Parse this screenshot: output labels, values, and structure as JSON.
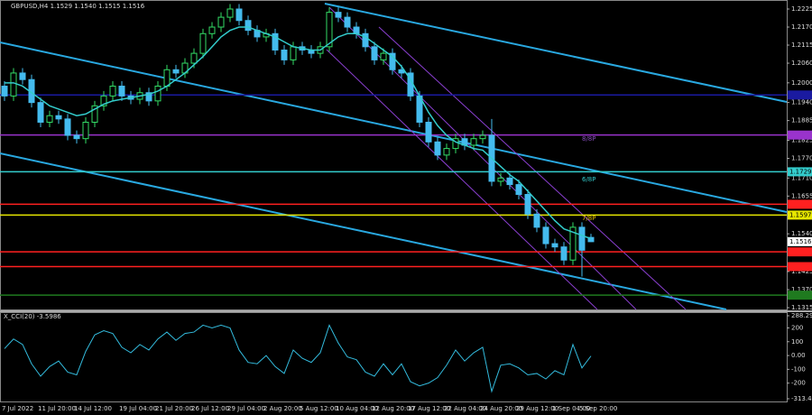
{
  "chart_data": [
    {
      "type": "candlestick",
      "title": "GBPUSD,H4  1.1529 1.1540 1.1515 1.1516",
      "categories": [
        "7 Jul 2022",
        null,
        null,
        null,
        "11 Jul 20:00",
        null,
        null,
        null,
        "14 Jul 12:00",
        null,
        null,
        null,
        null,
        "19 Jul 04:00",
        null,
        null,
        null,
        "21 Jul 20:00",
        null,
        null,
        null,
        "26 Jul 12:00",
        null,
        null,
        null,
        "29 Jul 04:00",
        null,
        null,
        null,
        "2 Aug 20:00",
        null,
        null,
        null,
        "5 Aug 12:00",
        null,
        null,
        null,
        "10 Aug 04:00",
        null,
        null,
        null,
        "12 Aug 20:00",
        null,
        null,
        null,
        "17 Aug 12:00",
        null,
        null,
        null,
        "22 Aug 04:00",
        null,
        null,
        null,
        "24 Aug 20:00",
        null,
        null,
        null,
        "29 Aug 12:00",
        null,
        null,
        null,
        "1 Sep 04:00",
        null,
        null,
        "5 Sep 20:00",
        null
      ],
      "open": [
        1.199,
        1.196,
        1.203,
        1.201,
        1.194,
        1.188,
        1.19,
        1.189,
        1.184,
        1.183,
        1.188,
        1.193,
        1.196,
        1.199,
        1.196,
        1.195,
        1.197,
        1.1945,
        1.199,
        1.204,
        1.203,
        1.206,
        1.209,
        1.215,
        1.217,
        1.22,
        1.2225,
        1.219,
        1.216,
        1.214,
        1.215,
        1.21,
        1.207,
        1.211,
        1.21,
        1.209,
        1.211,
        1.2215,
        1.22,
        1.217,
        1.215,
        1.211,
        1.207,
        1.209,
        1.204,
        1.203,
        1.196,
        1.188,
        1.182,
        1.178,
        1.18,
        1.183,
        1.181,
        1.183,
        1.184,
        1.17,
        1.171,
        1.169,
        1.166,
        1.16,
        1.156,
        1.151,
        1.15,
        1.146,
        1.156,
        1.1529
      ],
      "high": [
        1.2005,
        1.2045,
        1.2045,
        1.2025,
        1.1955,
        1.1915,
        1.1915,
        1.1905,
        1.1855,
        1.1895,
        1.1945,
        1.1975,
        1.2005,
        1.2005,
        1.1975,
        1.1985,
        1.1985,
        1.2005,
        1.2055,
        1.2055,
        1.2075,
        1.2105,
        1.2165,
        1.2185,
        1.2215,
        1.224,
        1.224,
        1.2205,
        1.2175,
        1.2165,
        1.2165,
        1.2115,
        1.2125,
        1.2125,
        1.2115,
        1.2125,
        1.223,
        1.223,
        1.2215,
        1.2185,
        1.2165,
        1.2125,
        1.2105,
        1.2105,
        1.2055,
        1.2045,
        1.1975,
        1.1895,
        1.1835,
        1.1815,
        1.1845,
        1.1845,
        1.1845,
        1.1855,
        1.189,
        1.1725,
        1.1725,
        1.1705,
        1.1675,
        1.1615,
        1.1575,
        1.1525,
        1.1515,
        1.1575,
        1.1575,
        1.154
      ],
      "low": [
        1.1945,
        1.1945,
        1.1995,
        1.1925,
        1.1865,
        1.1865,
        1.1875,
        1.1825,
        1.1815,
        1.1815,
        1.1865,
        1.1915,
        1.1945,
        1.1945,
        1.1935,
        1.1935,
        1.193,
        1.193,
        1.1975,
        1.2015,
        1.2015,
        1.2045,
        1.2075,
        1.2135,
        1.2155,
        1.2185,
        1.2175,
        1.2145,
        1.2125,
        1.2125,
        1.2085,
        1.2055,
        1.2055,
        1.2085,
        1.2075,
        1.2075,
        1.2095,
        1.2185,
        1.2155,
        1.2135,
        1.2095,
        1.2055,
        1.2055,
        1.2025,
        1.2015,
        1.1945,
        1.1865,
        1.1805,
        1.1765,
        1.1765,
        1.1785,
        1.1795,
        1.1795,
        1.1815,
        1.1685,
        1.1685,
        1.1675,
        1.1645,
        1.1585,
        1.1545,
        1.1495,
        1.1485,
        1.1445,
        1.1445,
        1.141,
        1.1515
      ],
      "close": [
        1.196,
        1.203,
        1.201,
        1.194,
        1.188,
        1.19,
        1.189,
        1.184,
        1.183,
        1.188,
        1.193,
        1.196,
        1.199,
        1.196,
        1.195,
        1.197,
        1.1945,
        1.199,
        1.204,
        1.203,
        1.206,
        1.209,
        1.215,
        1.217,
        1.22,
        1.2225,
        1.219,
        1.216,
        1.214,
        1.215,
        1.21,
        1.207,
        1.211,
        1.21,
        1.209,
        1.211,
        1.2215,
        1.22,
        1.217,
        1.215,
        1.211,
        1.207,
        1.209,
        1.204,
        1.203,
        1.196,
        1.188,
        1.182,
        1.178,
        1.18,
        1.183,
        1.181,
        1.183,
        1.184,
        1.17,
        1.171,
        1.169,
        1.166,
        1.16,
        1.156,
        1.151,
        1.15,
        1.146,
        1.156,
        1.149,
        1.1516
      ],
      "ma": {
        "color": "#33cccc",
        "values": [
          1.2,
          1.2,
          1.199,
          1.197,
          1.195,
          1.193,
          1.192,
          1.191,
          1.19,
          1.1905,
          1.192,
          1.1935,
          1.1945,
          1.195,
          1.1955,
          1.196,
          1.1965,
          1.1975,
          1.199,
          1.201,
          1.203,
          1.2055,
          1.208,
          1.211,
          1.214,
          1.216,
          1.217,
          1.217,
          1.216,
          1.215,
          1.214,
          1.2125,
          1.211,
          1.2105,
          1.21,
          1.21,
          1.212,
          1.214,
          1.215,
          1.215,
          1.214,
          1.212,
          1.21,
          1.208,
          1.205,
          1.201,
          1.196,
          1.191,
          1.187,
          1.184,
          1.182,
          1.181,
          1.18,
          1.1795,
          1.177,
          1.1745,
          1.172,
          1.17,
          1.167,
          1.164,
          1.161,
          1.158,
          1.1555,
          1.1545,
          1.1535,
          1.1525
        ]
      },
      "up_color": "#33dd66",
      "down_color": "#44bbee",
      "ylim": [
        1.1315,
        1.2225
      ],
      "yticks": [
        1.2225,
        {
          "value": 1.217,
          "label": "1.2170"
        },
        1.2115,
        {
          "value": 1.206,
          "label": "1.2060"
        },
        {
          "value": 1.2,
          "label": "1.2000"
        },
        {
          "value": 1.194,
          "label": "1.1940"
        },
        1.1885,
        1.1825,
        {
          "value": 1.177,
          "label": "1.1770"
        },
        {
          "value": 1.171,
          "label": "1.1710"
        },
        1.1655,
        {
          "value": 1.154,
          "label": "1.1540"
        },
        1.1425,
        {
          "value": 1.137,
          "label": "1.1370"
        },
        1.1315
      ],
      "last_price_label": "1.1516",
      "levels": [
        {
          "value": 1.1963,
          "color": "#1a1aa0"
        },
        {
          "value": 1.1841,
          "color": "#9933cc"
        },
        {
          "value": 1.1729,
          "color": "#33cccc",
          "label": "1.1729"
        },
        {
          "value": 1.163,
          "color": "#ff2020"
        },
        {
          "value": 1.1597,
          "color": "#e6e600",
          "label": "1.1597"
        },
        {
          "value": 1.1485,
          "color": "#ff2020"
        },
        {
          "value": 1.144,
          "color": "#ff2020"
        },
        {
          "value": 1.1353,
          "color": "#1f7a1f"
        }
      ],
      "annotations": [
        {
          "text": "8/8P",
          "value": 1.1829,
          "color": "#8a4fc0"
        },
        {
          "text": "6/8P",
          "value": 1.1705,
          "color": "#33cccc"
        },
        {
          "text": "7/8P",
          "value": 1.1587,
          "color": "#e6c200"
        }
      ]
    },
    {
      "type": "line",
      "title": "X_CCI(20) -3.5986",
      "color": "#33bbdd",
      "values": [
        50,
        120,
        80,
        -60,
        -150,
        -80,
        -40,
        -120,
        -140,
        30,
        150,
        180,
        160,
        60,
        20,
        80,
        40,
        120,
        170,
        110,
        160,
        170,
        220,
        200,
        220,
        200,
        40,
        -50,
        -60,
        0,
        -80,
        -130,
        40,
        -20,
        -50,
        20,
        220,
        90,
        -10,
        -30,
        -120,
        -150,
        -60,
        -140,
        -60,
        -190,
        -220,
        -200,
        -160,
        -70,
        40,
        -40,
        20,
        60,
        -260,
        -70,
        -60,
        -90,
        -140,
        -130,
        -170,
        -110,
        -140,
        80,
        -90,
        -3.5986
      ],
      "ylim": [
        -313.4828,
        288.2933
      ],
      "yticks": [
        288.2933,
        200,
        100,
        {
          "value": 0,
          "label": "0.00"
        },
        -100,
        -200,
        -313.4828
      ]
    }
  ]
}
